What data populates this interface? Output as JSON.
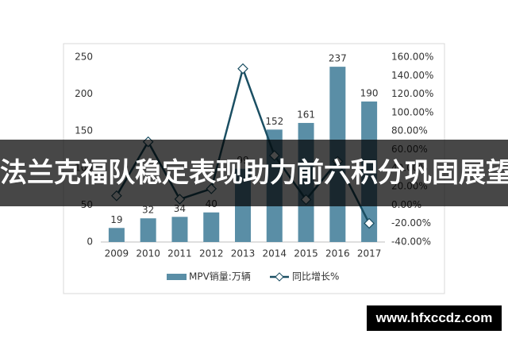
{
  "chart_data": {
    "type": "bar_line",
    "categories": [
      "2009",
      "2010",
      "2011",
      "2012",
      "2013",
      "2014",
      "2015",
      "2016",
      "2017"
    ],
    "series": [
      {
        "name": "MPV销量:万辆",
        "color": "#5a8ea6",
        "values": [
          19,
          32,
          34,
          40,
          99,
          152,
          161,
          237,
          190
        ]
      },
      {
        "name": "同比增长%",
        "color": "#1b4f63",
        "axis": "y2",
        "values": [
          10,
          68.4,
          6.3,
          17.6,
          147.5,
          53.5,
          5.9,
          47.2,
          -19.8
        ]
      }
    ],
    "ylim": [
      0,
      250
    ],
    "yticks": [
      0,
      50,
      100,
      150,
      200,
      250
    ],
    "y2lim": [
      -40,
      160
    ],
    "y2ticks": [
      {
        "value": -40,
        "label": "-40.00%"
      },
      {
        "value": -20,
        "label": "-20.00%"
      },
      {
        "value": 0,
        "label": "0.00%"
      },
      {
        "value": 20,
        "label": "20.00%"
      },
      {
        "value": 40,
        "label": "40.00%"
      },
      {
        "value": 60,
        "label": "60.00%"
      },
      {
        "value": 80,
        "label": "80.00%"
      },
      {
        "value": 100,
        "label": "100.00%"
      },
      {
        "value": 120,
        "label": "120.00%"
      },
      {
        "value": 140,
        "label": "140.00%"
      },
      {
        "value": 160,
        "label": "160.00%"
      }
    ],
    "grid": false
  },
  "banner": {
    "text": "法兰克福队稳定表现助力前六积分巩固展望"
  },
  "footer": {
    "url": "www.hfxccdz.com"
  }
}
